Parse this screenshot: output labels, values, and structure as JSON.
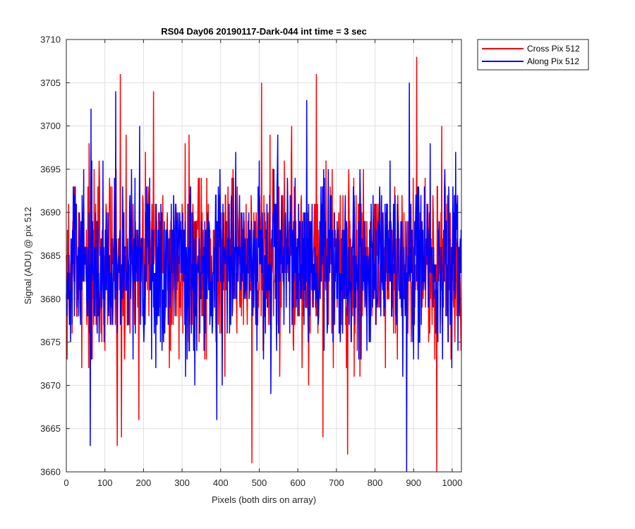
{
  "chart_data": {
    "type": "line",
    "title": "RS04 Day06 20190117-Dark-044 int time = 3 sec",
    "xlabel": "Pixels (both dirs on array)",
    "ylabel": "Signal (ADU) @ pix 512",
    "xlim": [
      0,
      1024
    ],
    "ylim": [
      3660,
      3710
    ],
    "xticks": [
      0,
      100,
      200,
      300,
      400,
      500,
      600,
      700,
      800,
      900,
      1000
    ],
    "yticks": [
      3660,
      3665,
      3670,
      3675,
      3680,
      3685,
      3690,
      3695,
      3700,
      3705,
      3710
    ],
    "xtick_labels": [
      "0",
      "100",
      "200",
      "300",
      "400",
      "500",
      "600",
      "700",
      "800",
      "900",
      "1000"
    ],
    "ytick_labels": [
      "3660",
      "3665",
      "3670",
      "3675",
      "3680",
      "3685",
      "3690",
      "3695",
      "3700",
      "3705",
      "3710"
    ],
    "grid": true,
    "legend_position": "outside-top-right",
    "series": [
      {
        "name": "Cross Pix 512",
        "color": "#ff0000",
        "x_range": [
          0,
          1023
        ],
        "point_count": 1024,
        "mean": 3684,
        "std": 5,
        "min": 3660,
        "max": 3708,
        "notable_peaks": [
          {
            "x": 132,
            "y": 3663
          },
          {
            "x": 140,
            "y": 3706
          },
          {
            "x": 143,
            "y": 3664
          },
          {
            "x": 188,
            "y": 3666
          },
          {
            "x": 226,
            "y": 3704
          },
          {
            "x": 481,
            "y": 3661
          },
          {
            "x": 506,
            "y": 3705
          },
          {
            "x": 648,
            "y": 3706
          },
          {
            "x": 665,
            "y": 3664
          },
          {
            "x": 729,
            "y": 3662
          },
          {
            "x": 908,
            "y": 3708
          },
          {
            "x": 960,
            "y": 3660
          }
        ]
      },
      {
        "name": "Along Pix 512",
        "color": "#0000ff",
        "x_range": [
          0,
          1023
        ],
        "point_count": 1024,
        "mean": 3684,
        "std": 5,
        "min": 3660,
        "max": 3705,
        "notable_peaks": [
          {
            "x": 62,
            "y": 3663
          },
          {
            "x": 64,
            "y": 3702
          },
          {
            "x": 128,
            "y": 3704
          },
          {
            "x": 390,
            "y": 3666
          },
          {
            "x": 623,
            "y": 3703
          },
          {
            "x": 882,
            "y": 3660
          },
          {
            "x": 889,
            "y": 3705
          }
        ]
      }
    ]
  }
}
